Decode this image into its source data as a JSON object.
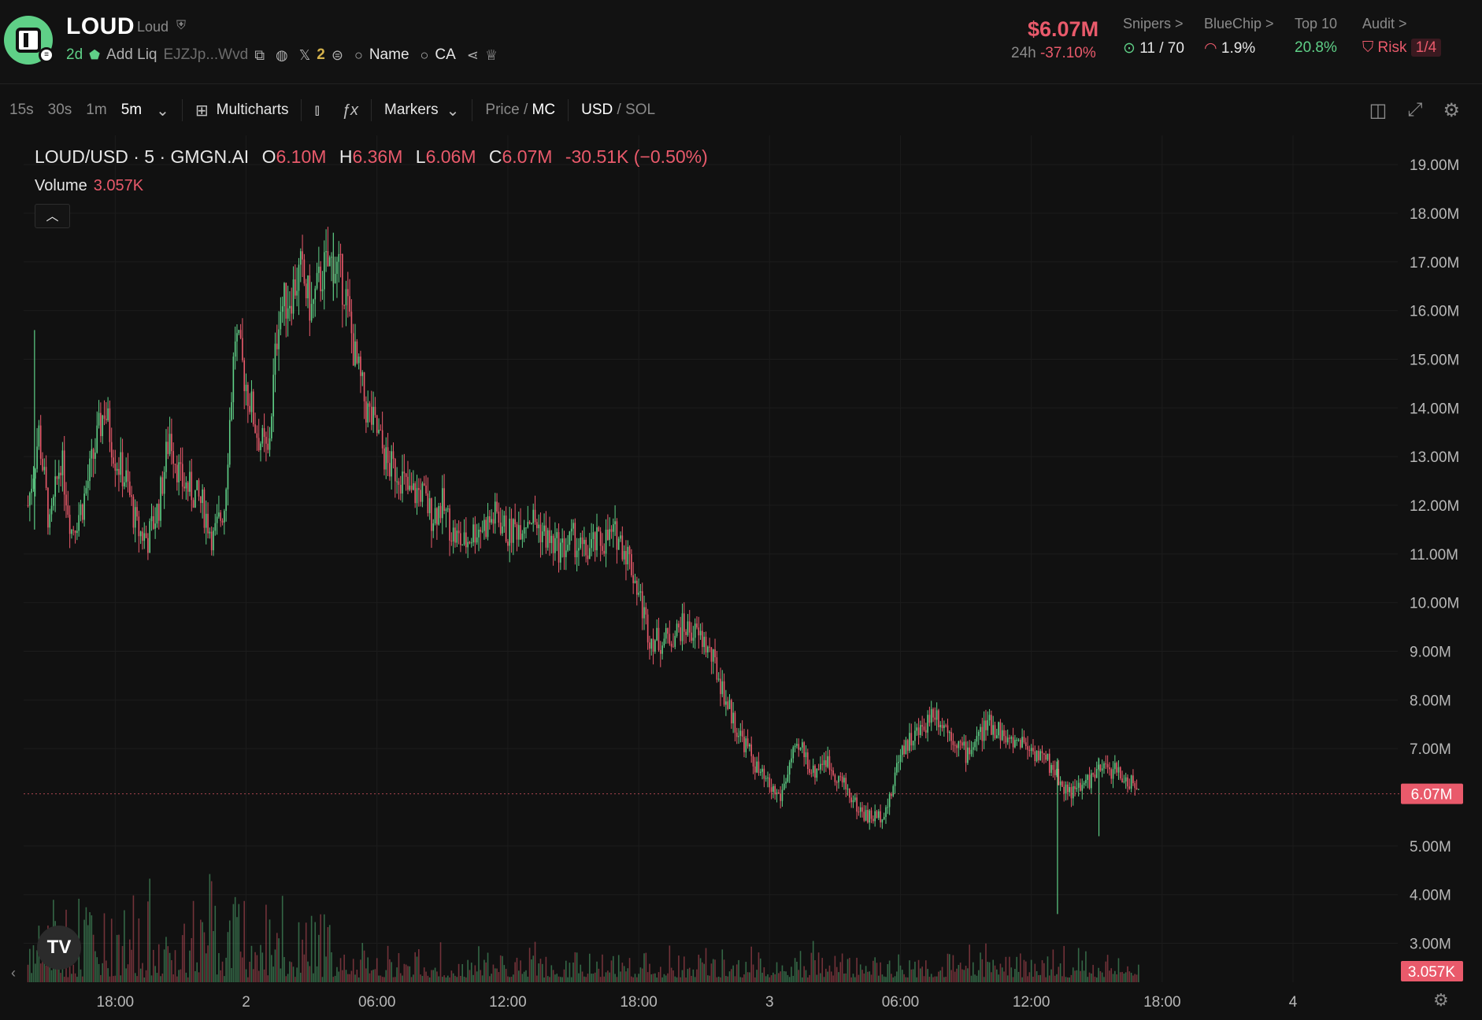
{
  "header": {
    "symbol": "LOUD",
    "name": "Loud",
    "age": "2d",
    "add_liq": "Add Liq",
    "contract_short": "EJZJp...Wvd",
    "x_count": "2",
    "search_name": "Name",
    "search_ca": "CA",
    "market_cap": "$6.07M",
    "change_label": "24h",
    "change_value": "-37.10%",
    "snipers_label": "Snipers >",
    "snipers_value": "11 / 70",
    "bluechip_label": "BlueChip >",
    "bluechip_value": "1.9%",
    "top10_label": "Top 10",
    "top10_value": "20.8%",
    "audit_label": "Audit >",
    "risk_label": "Risk",
    "risk_value": "1/4"
  },
  "toolbar": {
    "timeframes": [
      "15s",
      "30s",
      "1m",
      "5m"
    ],
    "active_timeframe": "5m",
    "multicharts": "Multicharts",
    "markers": "Markers",
    "price_label": "Price",
    "mc_label": "MC",
    "usd_label": "USD",
    "sol_label": "SOL"
  },
  "legend": {
    "pair": "LOUD/USD · 5 · GMGN.AI",
    "o_label": "O",
    "o_value": "6.10M",
    "h_label": "H",
    "h_value": "6.36M",
    "l_label": "L",
    "l_value": "6.06M",
    "c_label": "C",
    "c_value": "6.07M",
    "change": "-30.51K (−0.50%)",
    "volume_label": "Volume",
    "volume_value": "3.057K"
  },
  "colors": {
    "up": "#5fd087",
    "down": "#e95a6b",
    "background": "#111111",
    "grid": "#1c1c1c"
  },
  "chart_data": {
    "type": "candlestick",
    "y_ticks": [
      "19.00M",
      "18.00M",
      "17.00M",
      "16.00M",
      "15.00M",
      "14.00M",
      "13.00M",
      "12.00M",
      "11.00M",
      "10.00M",
      "9.00M",
      "8.00M",
      "7.00M",
      "5.00M",
      "4.00M",
      "3.00M"
    ],
    "y_tick_values": [
      19,
      18,
      17,
      16,
      15,
      14,
      13,
      12,
      11,
      10,
      9,
      8,
      7,
      5,
      4,
      3
    ],
    "ylim": [
      2.2,
      19.6
    ],
    "x_ticks": [
      "18:00",
      "2",
      "06:00",
      "12:00",
      "18:00",
      "3",
      "06:00",
      "12:00",
      "18:00",
      "4"
    ],
    "x_tick_hours": [
      18,
      24,
      30,
      36,
      42,
      48,
      54,
      60,
      66,
      72
    ],
    "xlim_hours": [
      13.8,
      76.8
    ],
    "current_price_label": "6.07M",
    "current_price": 6.07,
    "current_volume_label": "3.057K",
    "close_path": [
      [
        14.0,
        12.0
      ],
      [
        14.5,
        13.5
      ],
      [
        15.0,
        11.5
      ],
      [
        15.5,
        13.0
      ],
      [
        16.0,
        11.5
      ],
      [
        16.5,
        12.0
      ],
      [
        17.0,
        13.0
      ],
      [
        17.5,
        14.0
      ],
      [
        18.0,
        13.0
      ],
      [
        18.5,
        12.5
      ],
      [
        19.0,
        11.5
      ],
      [
        19.5,
        11.3
      ],
      [
        20.0,
        12.0
      ],
      [
        20.5,
        13.5
      ],
      [
        21.0,
        12.5
      ],
      [
        21.5,
        12.3
      ],
      [
        22.0,
        12.0
      ],
      [
        22.5,
        11.3
      ],
      [
        23.0,
        12.0
      ],
      [
        23.5,
        15.5
      ],
      [
        24.0,
        14.5
      ],
      [
        24.5,
        13.5
      ],
      [
        25.0,
        13.0
      ],
      [
        25.5,
        16.0
      ],
      [
        26.0,
        16.3
      ],
      [
        26.5,
        16.8
      ],
      [
        27.0,
        16.0
      ],
      [
        27.5,
        16.8
      ],
      [
        28.0,
        17.0
      ],
      [
        28.5,
        16.5
      ],
      [
        29.0,
        15.0
      ],
      [
        29.5,
        14.0
      ],
      [
        30.0,
        13.5
      ],
      [
        30.5,
        12.8
      ],
      [
        31.0,
        12.7
      ],
      [
        31.5,
        12.2
      ],
      [
        32.0,
        12.3
      ],
      [
        32.5,
        11.8
      ],
      [
        33.0,
        12.0
      ],
      [
        33.5,
        11.4
      ],
      [
        34.0,
        11.2
      ],
      [
        34.5,
        11.5
      ],
      [
        35.0,
        11.6
      ],
      [
        35.5,
        11.8
      ],
      [
        36.0,
        11.4
      ],
      [
        36.5,
        11.6
      ],
      [
        37.0,
        11.8
      ],
      [
        37.5,
        11.5
      ],
      [
        38.0,
        11.2
      ],
      [
        38.5,
        11.1
      ],
      [
        39.0,
        11.3
      ],
      [
        39.5,
        11.0
      ],
      [
        40.0,
        11.2
      ],
      [
        40.5,
        11.3
      ],
      [
        41.0,
        11.4
      ],
      [
        41.5,
        11.0
      ],
      [
        42.0,
        10.2
      ],
      [
        42.5,
        9.3
      ],
      [
        43.0,
        9.2
      ],
      [
        43.5,
        9.3
      ],
      [
        44.0,
        9.5
      ],
      [
        44.5,
        9.4
      ],
      [
        45.0,
        9.2
      ],
      [
        45.5,
        8.7
      ],
      [
        46.0,
        8.0
      ],
      [
        46.5,
        7.4
      ],
      [
        47.0,
        7.0
      ],
      [
        47.5,
        6.5
      ],
      [
        48.0,
        6.2
      ],
      [
        48.5,
        6.0
      ],
      [
        49.0,
        6.8
      ],
      [
        49.5,
        7.0
      ],
      [
        50.0,
        6.5
      ],
      [
        50.5,
        6.8
      ],
      [
        51.0,
        6.5
      ],
      [
        51.5,
        6.2
      ],
      [
        52.0,
        5.8
      ],
      [
        52.5,
        5.6
      ],
      [
        53.0,
        5.6
      ],
      [
        53.5,
        5.9
      ],
      [
        54.0,
        7.0
      ],
      [
        54.5,
        7.2
      ],
      [
        55.0,
        7.4
      ],
      [
        55.5,
        7.8
      ],
      [
        56.0,
        7.5
      ],
      [
        56.5,
        7.2
      ],
      [
        57.0,
        6.9
      ],
      [
        57.5,
        7.2
      ],
      [
        58.0,
        7.5
      ],
      [
        58.5,
        7.4
      ],
      [
        59.0,
        7.1
      ],
      [
        59.5,
        7.2
      ],
      [
        60.0,
        7.0
      ],
      [
        60.5,
        6.8
      ],
      [
        61.0,
        6.6
      ],
      [
        61.5,
        6.2
      ],
      [
        62.0,
        6.1
      ],
      [
        62.5,
        6.3
      ],
      [
        63.0,
        6.5
      ],
      [
        63.5,
        6.6
      ],
      [
        64.0,
        6.5
      ],
      [
        64.5,
        6.3
      ],
      [
        65.0,
        6.1
      ]
    ],
    "wicks": [
      [
        61.2,
        3.6,
        6.8
      ],
      [
        63.1,
        5.2,
        6.8
      ],
      [
        28.0,
        16.2,
        17.6
      ],
      [
        14.3,
        11.5,
        15.6
      ]
    ]
  }
}
